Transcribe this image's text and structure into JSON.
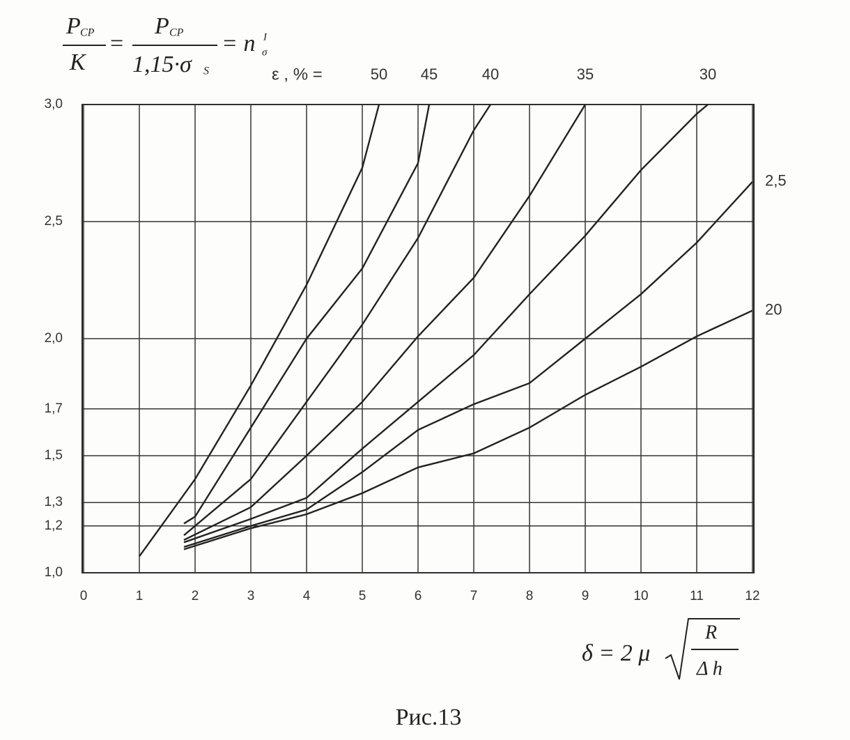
{
  "chart_data": {
    "type": "line",
    "y_label": {
      "numerator": "P",
      "numerator_sub": "CP",
      "denominator_left": "K",
      "denominator_right": "1,15·σ",
      "denominator_sub": "S",
      "result": "= n",
      "result_sub": "σ",
      "result_sup": "I"
    },
    "x_label": {
      "left": "δ = 2 μ",
      "root_numerator": "R",
      "root_denominator": "Δ h"
    },
    "legend_title": "ε , % =",
    "caption": "Рис.13",
    "xlim": [
      0,
      12
    ],
    "xticks": [
      0,
      1,
      2,
      3,
      4,
      5,
      6,
      7,
      8,
      9,
      10,
      11,
      12
    ],
    "ylim": [
      1.0,
      3.0
    ],
    "yticks": [
      {
        "value": 1.0,
        "label": "1,0"
      },
      {
        "value": 1.2,
        "label": "1,2"
      },
      {
        "value": 1.3,
        "label": "1,3"
      },
      {
        "value": 1.5,
        "label": "1,5"
      },
      {
        "value": 1.7,
        "label": "1,7"
      },
      {
        "value": 2.0,
        "label": "2,0"
      },
      {
        "value": 2.5,
        "label": "2,5"
      },
      {
        "value": 3.0,
        "label": "3,0"
      }
    ],
    "grid": true,
    "series": [
      {
        "name": "50",
        "color": "#222222",
        "x": [
          1,
          2,
          3,
          4,
          5,
          5.3
        ],
        "values": [
          1.07,
          1.4,
          1.8,
          2.23,
          2.73,
          3.0
        ]
      },
      {
        "name": "45",
        "color": "#222222",
        "x": [
          1.8,
          2,
          3,
          4,
          5,
          6,
          6.2
        ],
        "values": [
          1.21,
          1.24,
          1.62,
          2.0,
          2.3,
          2.75,
          3.0
        ]
      },
      {
        "name": "40",
        "color": "#222222",
        "x": [
          1.8,
          3,
          4,
          5,
          6,
          7,
          7.3
        ],
        "values": [
          1.16,
          1.4,
          1.73,
          2.06,
          2.43,
          2.89,
          3.0
        ]
      },
      {
        "name": "35",
        "color": "#222222",
        "x": [
          1.8,
          3,
          4,
          5,
          6,
          7,
          8,
          9
        ],
        "values": [
          1.14,
          1.28,
          1.5,
          1.73,
          2.01,
          2.26,
          2.61,
          3.0
        ]
      },
      {
        "name": "30",
        "color": "#222222",
        "x": [
          1.8,
          3,
          4,
          5,
          6,
          7,
          8,
          9,
          10,
          11,
          11.2
        ],
        "values": [
          1.13,
          1.23,
          1.32,
          1.53,
          1.73,
          1.93,
          2.19,
          2.44,
          2.72,
          2.96,
          3.0
        ]
      },
      {
        "name": "2,5",
        "color": "#222222",
        "x": [
          1.8,
          3,
          4,
          5,
          6,
          7,
          8,
          9,
          10,
          11,
          12
        ],
        "values": [
          1.11,
          1.2,
          1.27,
          1.43,
          1.61,
          1.72,
          1.81,
          2.0,
          2.19,
          2.41,
          2.67
        ]
      },
      {
        "name": "20",
        "color": "#222222",
        "x": [
          1.8,
          3,
          4,
          5,
          6,
          7,
          8,
          9,
          10,
          11,
          12
        ],
        "values": [
          1.1,
          1.19,
          1.25,
          1.34,
          1.45,
          1.51,
          1.62,
          1.76,
          1.88,
          2.01,
          2.12
        ]
      }
    ]
  }
}
